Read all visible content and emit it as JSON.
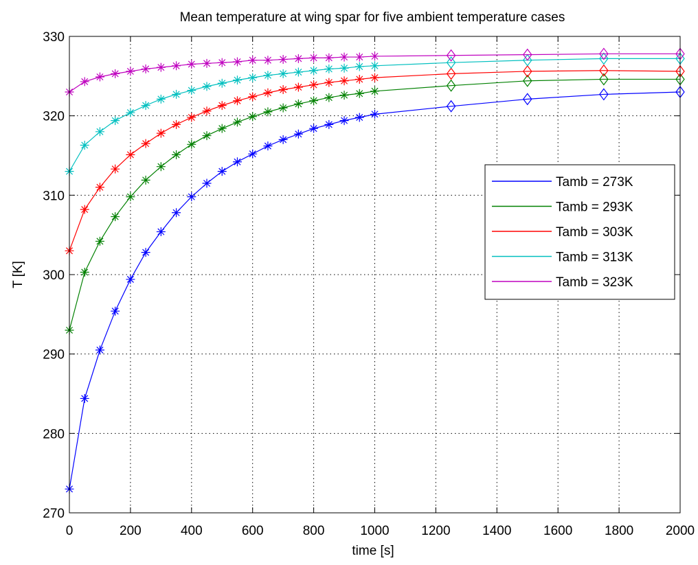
{
  "chart_data": {
    "type": "line",
    "title": "Mean temperature at wing spar for five ambient temperature cases",
    "xlabel": "time [s]",
    "ylabel": "T [K]",
    "xlim": [
      0,
      2000
    ],
    "ylim": [
      270,
      330
    ],
    "xticks": [
      0,
      200,
      400,
      600,
      800,
      1000,
      1200,
      1400,
      1600,
      1800,
      2000
    ],
    "yticks": [
      270,
      280,
      290,
      300,
      310,
      320,
      330
    ],
    "grid": true,
    "legend_position": "right, upper-middle",
    "x": [
      0,
      50,
      100,
      150,
      200,
      250,
      300,
      350,
      400,
      450,
      500,
      550,
      600,
      650,
      700,
      750,
      800,
      850,
      900,
      950,
      1000,
      1250,
      1500,
      1750,
      2000
    ],
    "marker_change_after_x": 1000,
    "markers": {
      "up_to_1000": "asterisk",
      "after_1000": "diamond"
    },
    "series": [
      {
        "name": "Tamb = 273K",
        "color": "#0000ff",
        "values": [
          273.0,
          284.4,
          290.5,
          295.4,
          299.4,
          302.8,
          305.4,
          307.8,
          309.8,
          311.5,
          313.0,
          314.2,
          315.2,
          316.2,
          317.0,
          317.7,
          318.4,
          318.9,
          319.4,
          319.8,
          320.2,
          321.2,
          322.1,
          322.7,
          323.0
        ]
      },
      {
        "name": "Tamb = 293K",
        "color": "#008000",
        "values": [
          293.0,
          300.3,
          304.2,
          307.3,
          309.8,
          311.9,
          313.6,
          315.1,
          316.4,
          317.5,
          318.4,
          319.2,
          319.9,
          320.5,
          321.0,
          321.5,
          321.9,
          322.3,
          322.6,
          322.8,
          323.1,
          323.8,
          324.4,
          324.6,
          324.6
        ]
      },
      {
        "name": "Tamb = 303K",
        "color": "#ff0000",
        "values": [
          303.0,
          308.2,
          311.0,
          313.3,
          315.1,
          316.5,
          317.8,
          318.9,
          319.8,
          320.6,
          321.3,
          321.9,
          322.4,
          322.9,
          323.3,
          323.6,
          323.9,
          324.2,
          324.4,
          324.6,
          324.8,
          325.3,
          325.6,
          325.7,
          325.6
        ]
      },
      {
        "name": "Tamb = 313K",
        "color": "#00bfbf",
        "values": [
          313.0,
          316.3,
          318.0,
          319.4,
          320.4,
          321.3,
          322.1,
          322.7,
          323.2,
          323.7,
          324.1,
          324.5,
          324.8,
          325.1,
          325.3,
          325.5,
          325.7,
          325.9,
          326.0,
          326.2,
          326.3,
          326.7,
          327.0,
          327.2,
          327.2
        ]
      },
      {
        "name": "Tamb = 323K",
        "color": "#bf00bf",
        "values": [
          323.0,
          324.3,
          324.9,
          325.3,
          325.6,
          325.9,
          326.1,
          326.3,
          326.5,
          326.6,
          326.7,
          326.8,
          327.0,
          327.0,
          327.1,
          327.2,
          327.3,
          327.3,
          327.4,
          327.4,
          327.5,
          327.6,
          327.7,
          327.8,
          327.8
        ]
      }
    ]
  }
}
